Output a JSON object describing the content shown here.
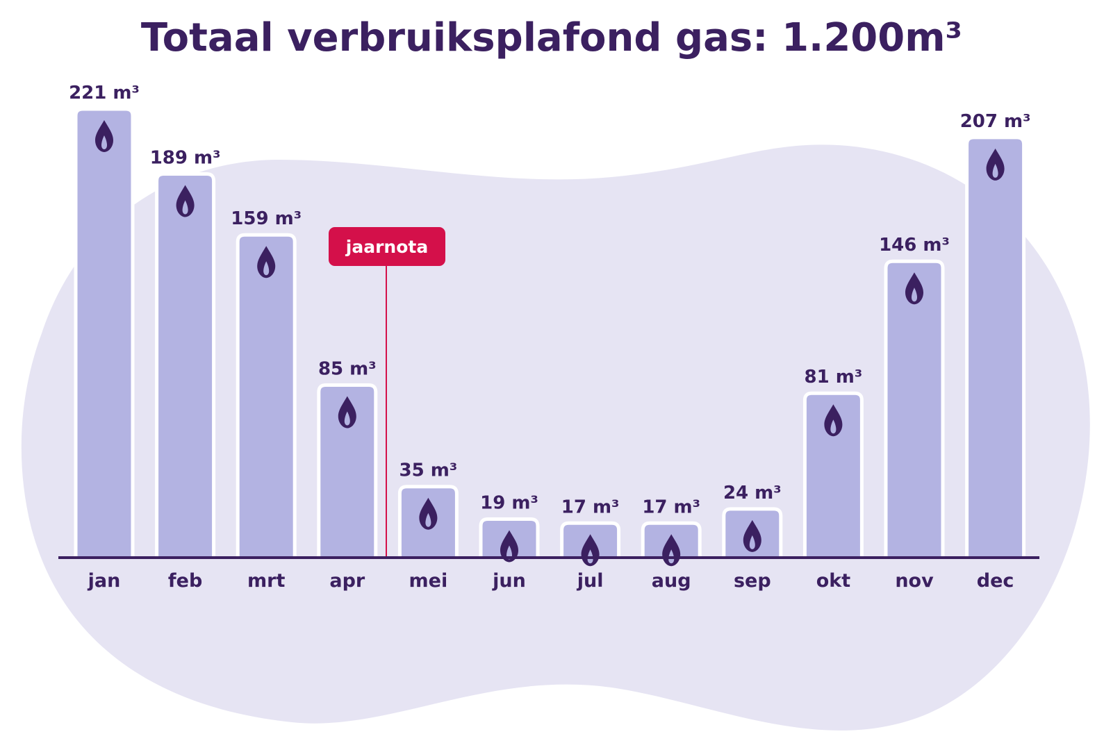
{
  "colors": {
    "background_blob": "#e6e4f3",
    "bar_fill": "#b3b3e2",
    "bar_outline": "#ffffff",
    "text": "#3b2060",
    "axis": "#3b2060",
    "flame": "#3b2060",
    "flame_inner": "#b3b3e2",
    "marker": "#d4104a",
    "marker_text": "#ffffff"
  },
  "chart_data": {
    "type": "bar",
    "title": "Totaal verbruiksplafond gas: 1.200m³",
    "categories": [
      "jan",
      "feb",
      "mrt",
      "apr",
      "mei",
      "jun",
      "jul",
      "aug",
      "sep",
      "okt",
      "nov",
      "dec"
    ],
    "values": [
      221,
      189,
      159,
      85,
      35,
      19,
      17,
      17,
      24,
      81,
      146,
      207
    ],
    "value_labels": [
      "221 m³",
      "189 m³",
      "159 m³",
      "85 m³",
      "35 m³",
      "19 m³",
      "17 m³",
      "17 m³",
      "24 m³",
      "81 m³",
      "146 m³",
      "207 m³"
    ],
    "unit": "m³",
    "bar_icon": "gas-flame-icon",
    "xlabel": "",
    "ylabel": "",
    "ylim": [
      0,
      221
    ],
    "grid": false,
    "annotation": {
      "label": "jaarnota",
      "position": "between apr and mei"
    }
  }
}
